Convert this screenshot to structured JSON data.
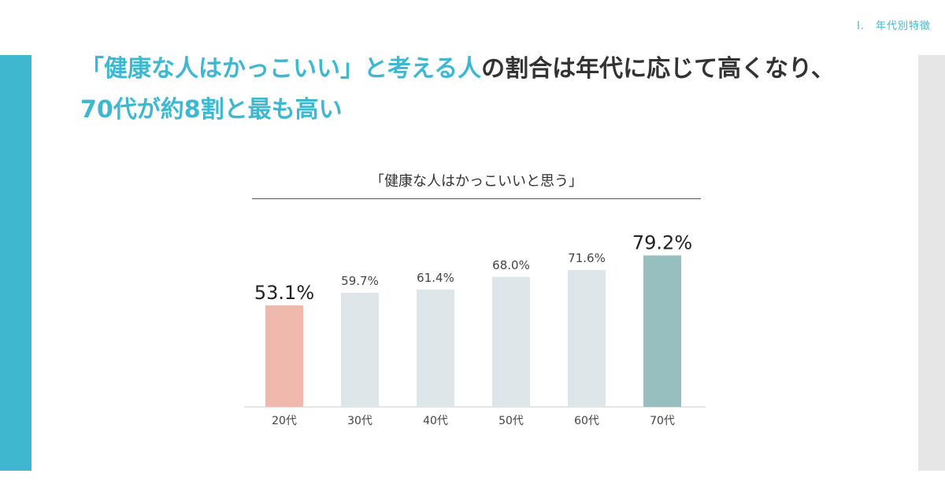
{
  "section_label": "Ⅰ.　年代別特徴",
  "headline": {
    "line1_highlight": "「健康な人はかっこいい」と考える人",
    "line1_dark": "の割合は年代に応じて高くなり、",
    "line2_highlight": "70代が約8割と最も高い"
  },
  "colors": {
    "accent": "#3fb8cf",
    "bar_default": "#dfe6ea",
    "bar_lowest": "#f0b9ae",
    "bar_highest": "#97bfc0"
  },
  "chart_data": {
    "type": "bar",
    "title": "「健康な人はかっこいいと思う」",
    "categories": [
      "20代",
      "30代",
      "40代",
      "50代",
      "60代",
      "70代"
    ],
    "values": [
      53.1,
      59.7,
      61.4,
      68.0,
      71.6,
      79.2
    ],
    "value_labels": [
      "53.1%",
      "59.7%",
      "61.4%",
      "68.0%",
      "71.6%",
      "79.2%"
    ],
    "emphasized": [
      "lowest",
      "default",
      "default",
      "default",
      "default",
      "highest"
    ],
    "xlabel": "",
    "ylabel": "",
    "ylim": [
      0,
      100
    ],
    "grid": false,
    "legend": "none"
  }
}
